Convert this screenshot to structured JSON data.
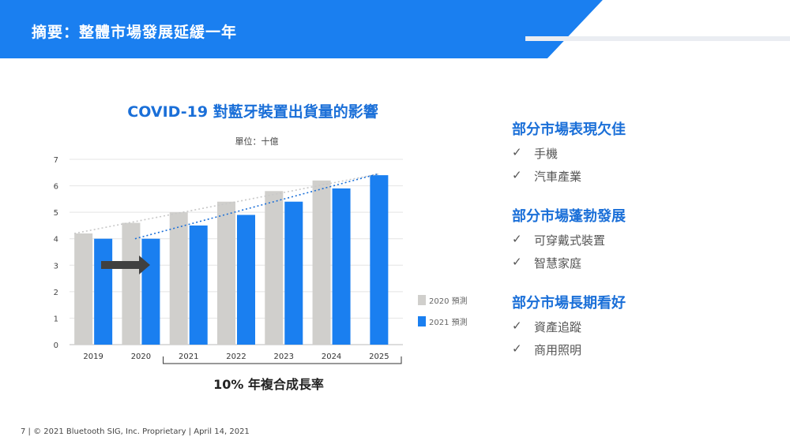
{
  "header": {
    "title": "摘要：整體市場發展延緩一年",
    "brand_color": "#1a7ff0"
  },
  "chart": {
    "unit_label": "單位：十億",
    "cagr_label": "10% 年複合成長率"
  },
  "chart_data": {
    "type": "bar",
    "title": "COVID-19 對藍牙裝置出貨量的影響",
    "categories": [
      "2019",
      "2020",
      "2021",
      "2022",
      "2023",
      "2024",
      "2025"
    ],
    "yticks": [
      "0",
      "1",
      "2",
      "3",
      "4",
      "5",
      "6",
      "7"
    ],
    "ylim": [
      0,
      7
    ],
    "series": [
      {
        "name": "2020 預測",
        "color": "#d0cfcc",
        "values": [
          4.2,
          4.6,
          5.0,
          5.4,
          5.8,
          6.2,
          null
        ]
      },
      {
        "name": "2021 預測",
        "color": "#1a7ff0",
        "values": [
          4.0,
          4.0,
          4.5,
          4.9,
          5.4,
          5.9,
          6.4
        ]
      }
    ],
    "grid": true,
    "legend": "right"
  },
  "sections": [
    {
      "heading": "部分市場表現欠佳",
      "items": [
        "手機",
        "汽車產業"
      ]
    },
    {
      "heading": "部分市場蓬勃發展",
      "items": [
        "可穿戴式裝置",
        "智慧家庭"
      ]
    },
    {
      "heading": "部分市場長期看好",
      "items": [
        "資產追蹤",
        "商用照明"
      ]
    }
  ],
  "check_symbol": "✓",
  "footer": {
    "text": "7  |  © 2021 Bluetooth SIG, Inc. Proprietary  |  April 14, 2021"
  }
}
